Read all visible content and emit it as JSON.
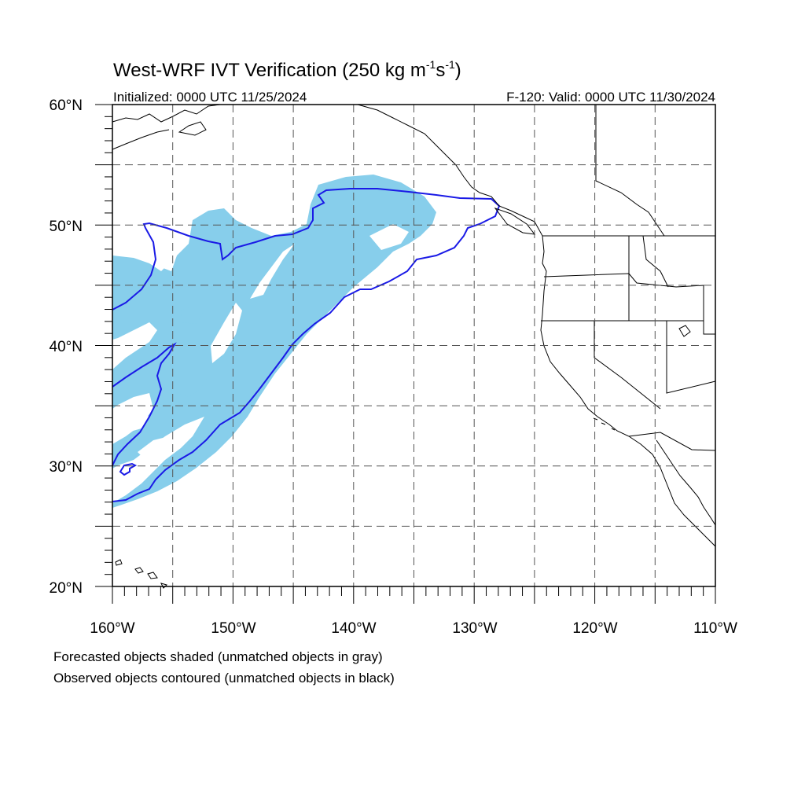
{
  "title": {
    "main": "West-WRF IVT Verification (250 kg m",
    "exp1": "-1",
    "mid": "s",
    "exp2": "-1",
    "close": ")"
  },
  "subtitle": {
    "left": "Initialized: 0000 UTC 11/25/2024",
    "right": "F-120: Valid: 0000 UTC 11/30/2024"
  },
  "axes": {
    "lat_labels": [
      "60°N",
      "50°N",
      "40°N",
      "30°N",
      "20°N"
    ],
    "lon_labels": [
      "160°W",
      "150°W",
      "140°W",
      "130°W",
      "120°W",
      "110°W"
    ],
    "lat_range": [
      20,
      60
    ],
    "lon_range": [
      -160,
      -110
    ],
    "grid": "dashed every 5 degrees"
  },
  "colors": {
    "forecast_fill": "#87ceeb",
    "observed_contour": "#1a1ae6",
    "coastline": "#000000",
    "grid": "#555555"
  },
  "legend": {
    "line1": "Forecasted objects shaded (unmatched objects in gray)",
    "line2": "Observed objects contoured (unmatched objects in black)"
  }
}
